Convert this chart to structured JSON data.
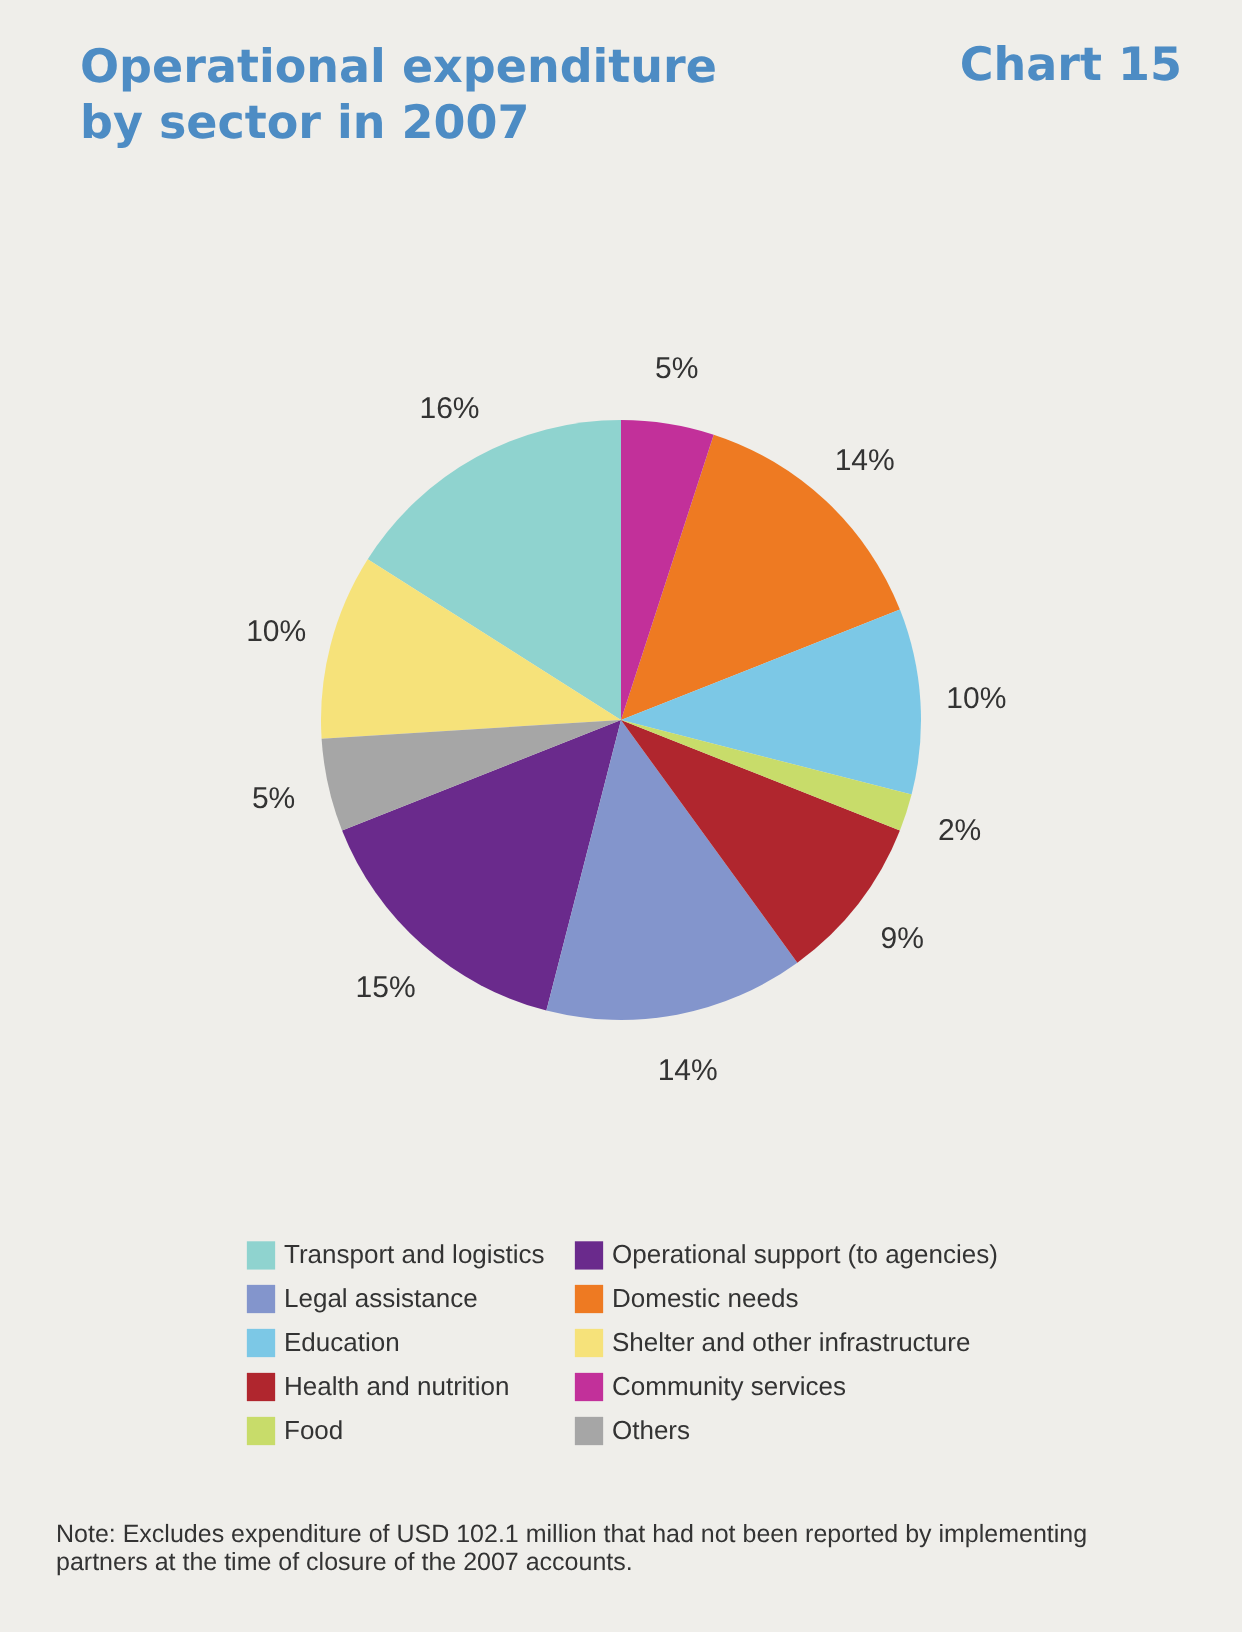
{
  "chart_data": {
    "type": "pie",
    "title": "Operational expenditure by sector in 2007",
    "annotations": [
      "Chart 15",
      "Note: Excludes expenditure of USD 102.1 million that had not been reported by implementing partners at the time of closure of the 2007 accounts."
    ],
    "categories": [
      "Transport and logistics",
      "Operational support (to agencies)",
      "Legal assistance",
      "Domestic needs",
      "Education",
      "Shelter and other infrastructure",
      "Health and nutrition",
      "Community services",
      "Food",
      "Others"
    ],
    "values": [
      16,
      15,
      14,
      14,
      10,
      10,
      9,
      5,
      2,
      5
    ],
    "value_labels": [
      "16%",
      "15%",
      "14%",
      "14%",
      "10%",
      "10%",
      "9%",
      "5%",
      "2%",
      "5%"
    ],
    "colors": [
      "#8fd3cf",
      "#6a2a8c",
      "#8395cc",
      "#ee7a22",
      "#7cc8e6",
      "#f6e27a",
      "#b0262e",
      "#c2309a",
      "#c8dc6a",
      "#a6a6a6"
    ],
    "legend": "bottom"
  }
}
